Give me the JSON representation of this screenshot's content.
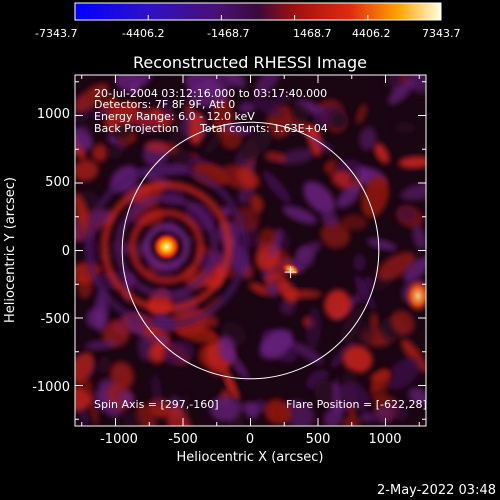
{
  "colorbar": {
    "tick_labels": [
      "-7343.7",
      "-4406.2",
      "-1468.7",
      "1468.7",
      "4406.2",
      "7343.7"
    ],
    "min": -7343.7,
    "max": 7343.7
  },
  "plot": {
    "title": "Reconstructed RHESSI Image",
    "xlabel": "Heliocentric X (arcsec)",
    "ylabel": "Heliocentric Y (arcsec)",
    "x_ticks": [
      "-1000",
      "-500",
      "0",
      "500",
      "1000"
    ],
    "y_ticks": [
      "1000",
      "500",
      "0",
      "-500",
      "-1000"
    ],
    "xlim": [
      -1300,
      1300
    ],
    "ylim": [
      -1300,
      1300
    ],
    "solar_radius_arcsec": 950
  },
  "annotations": {
    "line1": "20-Jul-2004 03:12:16.000 to 03:17:40.000",
    "line2": "Detectors: 7F 8F 9F, Att 0",
    "line3": "Energy Range: 6.0 - 12.0 keV",
    "line4a": "Back Projection",
    "line4b": "Total counts: 1.63E+04",
    "spin_axis": "Spin Axis = [297,-160]",
    "flare_position": "Flare Position = [-622,28]"
  },
  "sources": [
    {
      "x": -622,
      "y": 28,
      "label": "bright source"
    },
    {
      "x": 300,
      "y": -140,
      "label": "secondary source"
    }
  ],
  "spin_axis_marker": {
    "x": 297,
    "y": -160
  },
  "timestamp": "2-May-2022 03:48"
}
